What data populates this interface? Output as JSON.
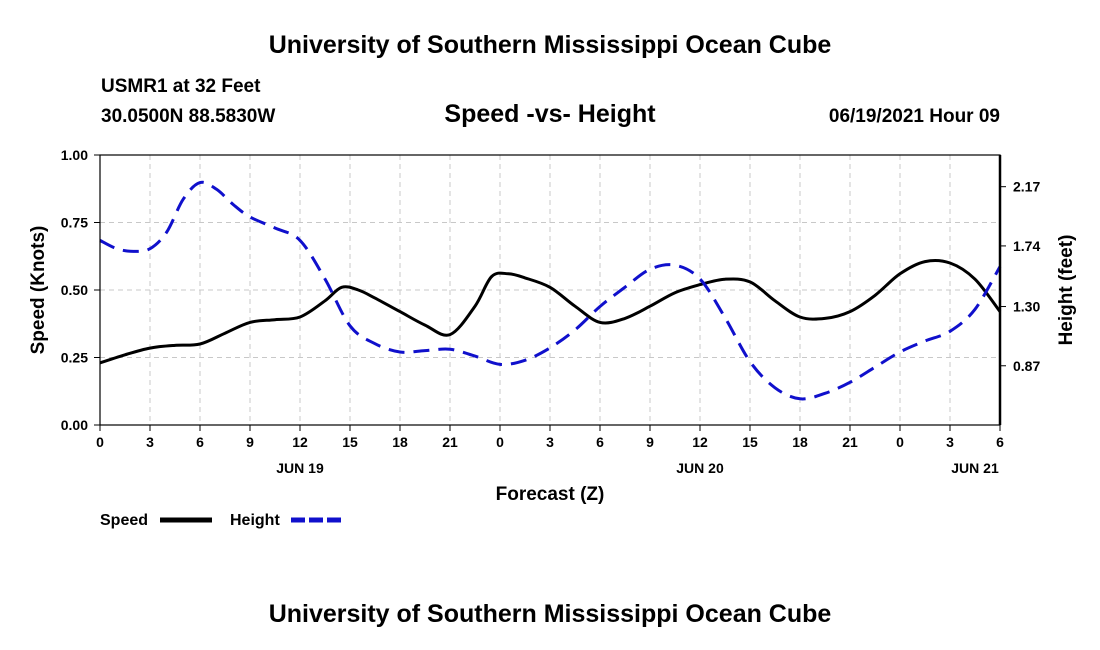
{
  "title": "University of Southern Mississippi Ocean Cube",
  "footer_title": "University of Southern Mississippi Ocean Cube",
  "station": "USMR1 at 32 Feet",
  "coordinates": "30.0500N  88.5830W",
  "subtitle": "Speed -vs- Height",
  "datetime": "06/19/2021 Hour 09",
  "chart_data": {
    "type": "line",
    "xlabel": "Forecast (Z)",
    "ylabel_left": "Speed (Knots)",
    "ylabel_right": "Height (feet)",
    "x_range": [
      0,
      54
    ],
    "x_ticks": [
      0,
      3,
      6,
      9,
      12,
      15,
      18,
      21,
      24,
      27,
      30,
      33,
      36,
      39,
      42,
      45,
      48,
      51,
      54
    ],
    "x_tick_labels": [
      "0",
      "3",
      "6",
      "9",
      "12",
      "15",
      "18",
      "21",
      "0",
      "3",
      "6",
      "9",
      "12",
      "15",
      "18",
      "21",
      "0",
      "3",
      "6"
    ],
    "date_labels": [
      {
        "x": 12,
        "label": "JUN 19"
      },
      {
        "x": 36,
        "label": "JUN 20"
      },
      {
        "x": 52.5,
        "label": "JUN 21"
      }
    ],
    "y_left": {
      "range": [
        0,
        1.0
      ],
      "ticks": [
        0.0,
        0.25,
        0.5,
        0.75,
        1.0
      ],
      "tick_labels": [
        "0.00",
        "0.25",
        "0.50",
        "0.75",
        "1.00"
      ]
    },
    "y_right": {
      "range": [
        0.44,
        2.4
      ],
      "ticks": [
        0.87,
        1.3,
        1.74,
        2.17
      ],
      "tick_labels": [
        "0.87",
        "1.30",
        "1.74",
        "2.17"
      ]
    },
    "grid": true,
    "legend": [
      "Speed",
      "Height"
    ],
    "series": [
      {
        "name": "Speed",
        "axis": "left",
        "color": "#000000",
        "dash": "solid",
        "x": [
          0,
          1.5,
          3,
          4.5,
          6,
          7.5,
          9,
          10.5,
          12,
          13.5,
          14.5,
          15.5,
          16.5,
          18,
          19.5,
          21,
          22.5,
          23.5,
          24.5,
          25.5,
          27,
          28.5,
          30,
          31.5,
          33,
          34.5,
          36,
          37.5,
          39,
          40.5,
          42,
          43.5,
          45,
          46.5,
          48,
          49.5,
          51,
          52.5,
          54
        ],
        "values": [
          0.23,
          0.26,
          0.285,
          0.295,
          0.3,
          0.34,
          0.38,
          0.39,
          0.4,
          0.46,
          0.51,
          0.5,
          0.47,
          0.42,
          0.37,
          0.335,
          0.44,
          0.55,
          0.56,
          0.545,
          0.51,
          0.44,
          0.38,
          0.395,
          0.44,
          0.49,
          0.52,
          0.54,
          0.53,
          0.46,
          0.4,
          0.395,
          0.42,
          0.48,
          0.56,
          0.605,
          0.6,
          0.54,
          0.42
        ]
      },
      {
        "name": "Height",
        "axis": "right",
        "color": "#1010cc",
        "dash": "dashed",
        "x": [
          0,
          1,
          2,
          3,
          4,
          5,
          6,
          7,
          8,
          9,
          10.5,
          12,
          13.5,
          15,
          16.5,
          18,
          19.5,
          21,
          22.5,
          24,
          25.5,
          27,
          28.5,
          30,
          31.5,
          33,
          34.5,
          36,
          37.5,
          39,
          40.5,
          42,
          43.5,
          45,
          46.5,
          48,
          49.5,
          51,
          52.5,
          54
        ],
        "values": [
          1.78,
          1.72,
          1.7,
          1.72,
          1.84,
          2.08,
          2.2,
          2.15,
          2.04,
          1.95,
          1.87,
          1.78,
          1.5,
          1.16,
          1.03,
          0.97,
          0.98,
          0.99,
          0.94,
          0.88,
          0.91,
          1.0,
          1.13,
          1.3,
          1.44,
          1.57,
          1.6,
          1.5,
          1.22,
          0.9,
          0.71,
          0.63,
          0.67,
          0.75,
          0.86,
          0.97,
          1.05,
          1.12,
          1.28,
          1.59
        ]
      }
    ]
  }
}
